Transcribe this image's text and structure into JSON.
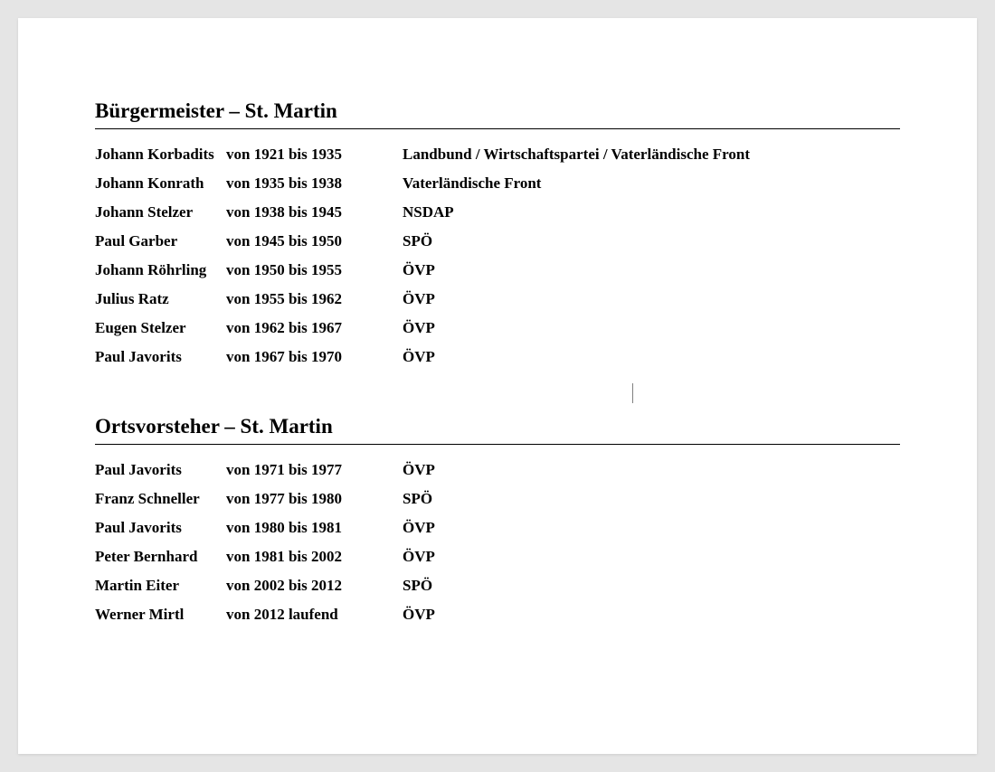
{
  "sections": [
    {
      "title": "Bürgermeister – St. Martin",
      "rows": [
        {
          "name": "Johann Korbadits",
          "period": "von 1921 bis 1935",
          "party": " Landbund / Wirtschaftspartei / Vaterländische Front"
        },
        {
          "name": "Johann Konrath",
          "period": "von 1935 bis 1938",
          "party": "Vaterländische Front"
        },
        {
          "name": "Johann Stelzer",
          "period": "von 1938 bis 1945",
          "party": "NSDAP"
        },
        {
          "name": "Paul Garber",
          "period": "von 1945 bis 1950",
          "party": "SPÖ"
        },
        {
          "name": "Johann Röhrling",
          "period": "von 1950 bis 1955",
          "party": "ÖVP"
        },
        {
          "name": "Julius Ratz",
          "period": "von 1955 bis 1962",
          "party": "ÖVP"
        },
        {
          "name": "Eugen Stelzer",
          "period": "von 1962 bis 1967",
          "party": "ÖVP"
        },
        {
          "name": "Paul Javorits",
          "period": "von 1967 bis 1970",
          "party": "ÖVP"
        }
      ]
    },
    {
      "title": "Ortsvorsteher – St. Martin",
      "rows": [
        {
          "name": "Paul Javorits",
          "period": "von 1971 bis 1977",
          "party": "ÖVP"
        },
        {
          "name": "Franz Schneller",
          "period": "von 1977 bis 1980",
          "party": "SPÖ"
        },
        {
          "name": "Paul Javorits",
          "period": "von 1980 bis 1981",
          "party": "ÖVP"
        },
        {
          "name": "Peter Bernhard",
          "period": "von 1981 bis 2002",
          "party": "ÖVP"
        },
        {
          "name": "Martin Eiter",
          "period": "von 2002 bis 2012",
          "party": "SPÖ"
        },
        {
          "name": "Werner Mirtl",
          "period": "von 2012 laufend",
          "party": "ÖVP"
        }
      ]
    }
  ],
  "styling": {
    "page_background": "#e5e5e5",
    "document_background": "#ffffff",
    "text_color": "#000000",
    "title_fontsize": 23,
    "row_fontsize": 17,
    "font_family": "Georgia, Times New Roman, serif",
    "font_weight": "bold",
    "border_color": "#000000",
    "col_widths": {
      "name": 145,
      "period": 195
    }
  }
}
